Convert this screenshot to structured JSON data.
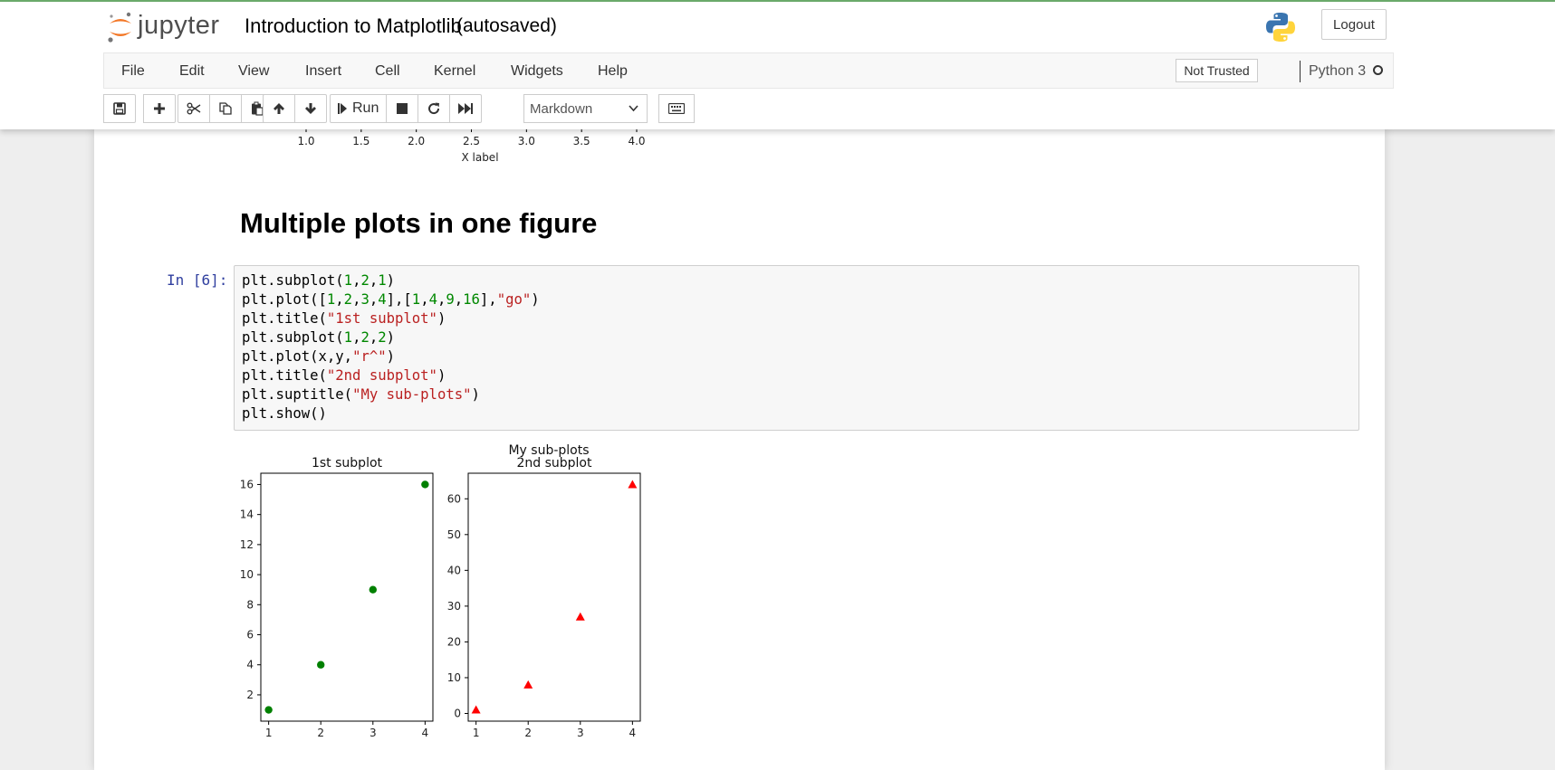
{
  "header": {
    "logo_text": "jupyter",
    "notebook_title": "Introduction to Matplotlib",
    "autosave_status": "(autosaved)",
    "logout_label": "Logout"
  },
  "menubar": {
    "items": [
      "File",
      "Edit",
      "View",
      "Insert",
      "Cell",
      "Kernel",
      "Widgets",
      "Help"
    ],
    "trust_status": "Not Trusted",
    "kernel_name": "Python 3"
  },
  "toolbar": {
    "run_label": "Run",
    "cell_type": "Markdown",
    "icons": [
      "save-icon",
      "plus-icon",
      "cut-icon",
      "copy-icon",
      "paste-icon",
      "arrow-up-icon",
      "arrow-down-icon",
      "step-forward-icon",
      "stop-icon",
      "restart-icon",
      "fast-forward-icon",
      "keyboard-icon"
    ]
  },
  "previous_output": {
    "x_ticks": [
      "1.0",
      "1.5",
      "2.0",
      "2.5",
      "3.0",
      "3.5",
      "4.0"
    ],
    "x_label": "X label"
  },
  "markdown_heading": "Multiple plots in one figure",
  "code_cell": {
    "prompt": "In [6]:",
    "lines": [
      [
        [
          "plt.subplot(",
          "p"
        ],
        [
          "1",
          "n"
        ],
        [
          ",",
          "p"
        ],
        [
          "2",
          "n"
        ],
        [
          ",",
          "p"
        ],
        [
          "1",
          "n"
        ],
        [
          ")",
          "p"
        ]
      ],
      [
        [
          "plt.plot([",
          "p"
        ],
        [
          "1",
          "n"
        ],
        [
          ",",
          "p"
        ],
        [
          "2",
          "n"
        ],
        [
          ",",
          "p"
        ],
        [
          "3",
          "n"
        ],
        [
          ",",
          "p"
        ],
        [
          "4",
          "n"
        ],
        [
          "],[",
          "p"
        ],
        [
          "1",
          "n"
        ],
        [
          ",",
          "p"
        ],
        [
          "4",
          "n"
        ],
        [
          ",",
          "p"
        ],
        [
          "9",
          "n"
        ],
        [
          ",",
          "p"
        ],
        [
          "16",
          "n"
        ],
        [
          "],",
          "p"
        ],
        [
          "\"go\"",
          "s"
        ],
        [
          ")",
          "p"
        ]
      ],
      [
        [
          "plt.title(",
          "p"
        ],
        [
          "\"1st subplot\"",
          "s"
        ],
        [
          ")",
          "p"
        ]
      ],
      [
        [
          "plt.subplot(",
          "p"
        ],
        [
          "1",
          "n"
        ],
        [
          ",",
          "p"
        ],
        [
          "2",
          "n"
        ],
        [
          ",",
          "p"
        ],
        [
          "2",
          "n"
        ],
        [
          ")",
          "p"
        ]
      ],
      [
        [
          "plt.plot(x,y,",
          "p"
        ],
        [
          "\"r^\"",
          "s"
        ],
        [
          ")",
          "p"
        ]
      ],
      [
        [
          "plt.title(",
          "p"
        ],
        [
          "\"2nd subplot\"",
          "s"
        ],
        [
          ")",
          "p"
        ]
      ],
      [
        [
          "plt.suptitle(",
          "p"
        ],
        [
          "\"My sub-plots\"",
          "s"
        ],
        [
          ")",
          "p"
        ]
      ],
      [
        [
          "plt.show()",
          "p"
        ]
      ]
    ]
  },
  "chart_data": [
    {
      "type": "scatter",
      "suptitle": "My sub-plots",
      "title": "1st subplot",
      "x": [
        1,
        2,
        3,
        4
      ],
      "y": [
        1,
        4,
        9,
        16
      ],
      "marker": "circle",
      "color": "#008000",
      "xlim": [
        0.85,
        4.15
      ],
      "ylim": [
        0.25,
        16.75
      ],
      "xticks": [
        1,
        2,
        3,
        4
      ],
      "yticks": [
        2,
        4,
        6,
        8,
        10,
        12,
        14,
        16
      ]
    },
    {
      "type": "scatter",
      "title": "2nd subplot",
      "x": [
        1,
        2,
        3,
        4
      ],
      "y": [
        1,
        8,
        27,
        64
      ],
      "marker": "triangle",
      "color": "#ff0000",
      "xlim": [
        0.85,
        4.15
      ],
      "ylim": [
        -2.15,
        67.15
      ],
      "xticks": [
        1,
        2,
        3,
        4
      ],
      "yticks": [
        0,
        10,
        20,
        30,
        40,
        50,
        60
      ]
    }
  ],
  "colors": {
    "prompt": "#303f9f",
    "code_number": "#008800",
    "code_string": "#ba2121",
    "logo_orange": "#f37726"
  }
}
